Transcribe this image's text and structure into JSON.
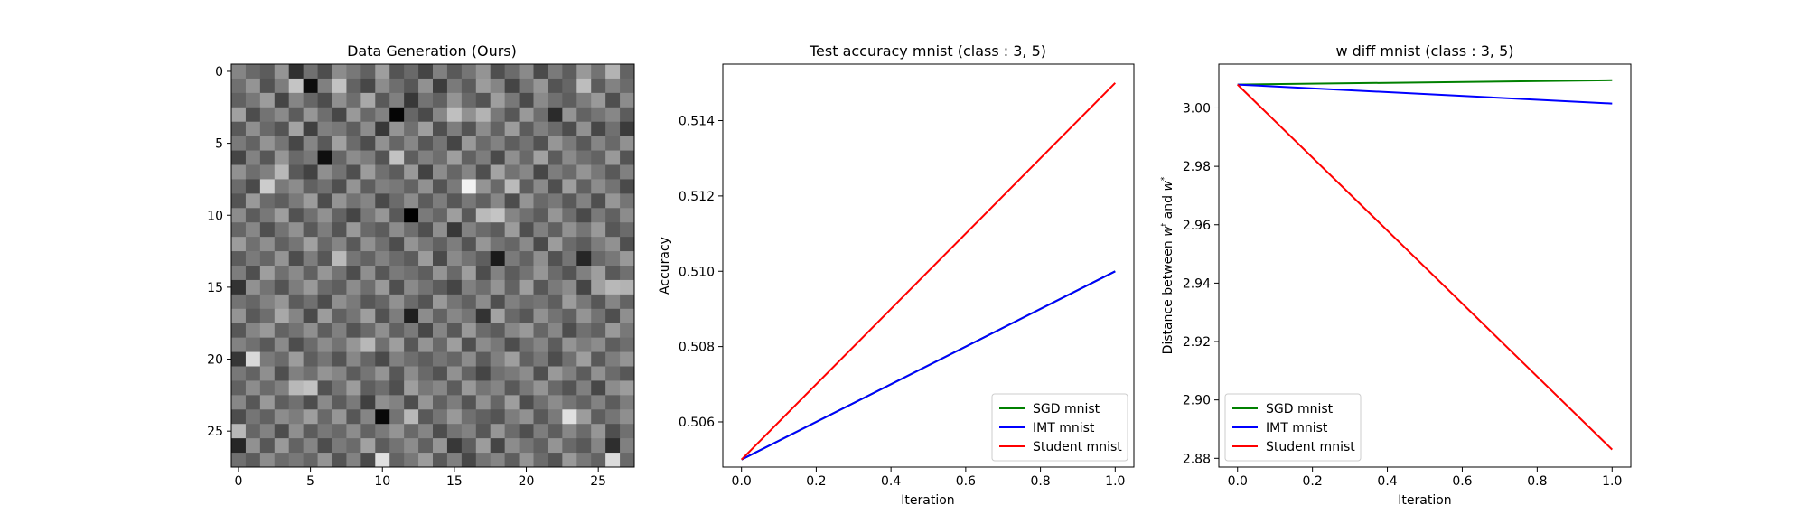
{
  "chart_data": [
    {
      "type": "heatmap",
      "title": "Data Generation (Ours)",
      "colormap": "gray",
      "rows": 28,
      "cols": 28,
      "xticks": [
        "0",
        "5",
        "10",
        "15",
        "20",
        "25"
      ],
      "yticks": [
        "0",
        "5",
        "10",
        "15",
        "20",
        "25"
      ],
      "cells": [
        [
          0.52,
          0.41,
          0.36,
          0.58,
          0.19,
          0.44,
          0.3,
          0.55,
          0.47,
          0.38,
          0.62,
          0.33,
          0.41,
          0.27,
          0.5,
          0.35,
          0.46,
          0.58,
          0.31,
          0.42,
          0.54,
          0.29,
          0.48,
          0.37,
          0.6,
          0.45,
          0.7,
          0.39
        ],
        [
          0.44,
          0.58,
          0.32,
          0.49,
          0.77,
          0.05,
          0.5,
          0.76,
          0.39,
          0.28,
          0.55,
          0.43,
          0.34,
          0.57,
          0.24,
          0.48,
          0.36,
          0.61,
          0.52,
          0.27,
          0.46,
          0.59,
          0.33,
          0.4,
          0.74,
          0.36,
          0.51,
          0.42
        ],
        [
          0.38,
          0.47,
          0.61,
          0.27,
          0.52,
          0.4,
          0.3,
          0.56,
          0.43,
          0.66,
          0.35,
          0.5,
          0.22,
          0.45,
          0.38,
          0.58,
          0.41,
          0.33,
          0.62,
          0.47,
          0.29,
          0.54,
          0.44,
          0.37,
          0.49,
          0.6,
          0.31,
          0.55
        ],
        [
          0.63,
          0.3,
          0.45,
          0.54,
          0.36,
          0.59,
          0.43,
          0.28,
          0.6,
          0.41,
          0.51,
          0.02,
          0.4,
          0.29,
          0.53,
          0.75,
          0.57,
          0.7,
          0.47,
          0.34,
          0.6,
          0.43,
          0.17,
          0.58,
          0.39,
          0.46,
          0.53,
          0.36
        ],
        [
          0.35,
          0.56,
          0.41,
          0.33,
          0.64,
          0.25,
          0.5,
          0.47,
          0.37,
          0.55,
          0.22,
          0.58,
          0.44,
          0.62,
          0.31,
          0.49,
          0.33,
          0.55,
          0.39,
          0.61,
          0.36,
          0.5,
          0.42,
          0.3,
          0.57,
          0.28,
          0.44,
          0.23
        ],
        [
          0.48,
          0.39,
          0.58,
          0.46,
          0.28,
          0.52,
          0.35,
          0.63,
          0.42,
          0.3,
          0.57,
          0.4,
          0.53,
          0.34,
          0.46,
          0.27,
          0.6,
          0.42,
          0.51,
          0.37,
          0.45,
          0.32,
          0.59,
          0.48,
          0.35,
          0.52,
          0.41,
          0.57
        ],
        [
          0.27,
          0.51,
          0.34,
          0.59,
          0.41,
          0.47,
          0.06,
          0.4,
          0.55,
          0.49,
          0.33,
          0.76,
          0.37,
          0.5,
          0.43,
          0.62,
          0.38,
          0.49,
          0.29,
          0.56,
          0.41,
          0.63,
          0.36,
          0.54,
          0.44,
          0.39,
          0.6,
          0.33
        ],
        [
          0.57,
          0.43,
          0.5,
          0.72,
          0.35,
          0.26,
          0.56,
          0.45,
          0.31,
          0.61,
          0.44,
          0.36,
          0.6,
          0.26,
          0.55,
          0.4,
          0.52,
          0.31,
          0.64,
          0.45,
          0.53,
          0.28,
          0.49,
          0.42,
          0.58,
          0.47,
          0.35,
          0.5
        ],
        [
          0.42,
          0.29,
          0.8,
          0.48,
          0.55,
          0.38,
          0.44,
          0.31,
          0.58,
          0.37,
          0.5,
          0.47,
          0.39,
          0.57,
          0.33,
          0.48,
          0.95,
          0.58,
          0.41,
          0.73,
          0.37,
          0.54,
          0.31,
          0.62,
          0.38,
          0.55,
          0.45,
          0.29
        ],
        [
          0.33,
          0.6,
          0.42,
          0.37,
          0.48,
          0.61,
          0.3,
          0.58,
          0.45,
          0.52,
          0.29,
          0.42,
          0.55,
          0.36,
          0.49,
          0.34,
          0.47,
          0.38,
          0.53,
          0.3,
          0.58,
          0.41,
          0.47,
          0.35,
          0.51,
          0.31,
          0.59,
          0.46
        ],
        [
          0.55,
          0.36,
          0.47,
          0.62,
          0.32,
          0.44,
          0.57,
          0.39,
          0.27,
          0.47,
          0.59,
          0.35,
          0.0,
          0.48,
          0.4,
          0.62,
          0.35,
          0.73,
          0.77,
          0.52,
          0.44,
          0.36,
          0.59,
          0.43,
          0.29,
          0.48,
          0.38,
          0.55
        ],
        [
          0.4,
          0.53,
          0.31,
          0.45,
          0.57,
          0.35,
          0.49,
          0.33,
          0.6,
          0.41,
          0.36,
          0.55,
          0.43,
          0.31,
          0.56,
          0.22,
          0.51,
          0.42,
          0.36,
          0.61,
          0.31,
          0.5,
          0.38,
          0.57,
          0.46,
          0.6,
          0.34,
          0.42
        ],
        [
          0.61,
          0.44,
          0.56,
          0.38,
          0.46,
          0.63,
          0.41,
          0.52,
          0.35,
          0.57,
          0.44,
          0.3,
          0.58,
          0.47,
          0.38,
          0.49,
          0.33,
          0.59,
          0.45,
          0.4,
          0.54,
          0.29,
          0.61,
          0.42,
          0.36,
          0.49,
          0.57,
          0.31
        ],
        [
          0.36,
          0.48,
          0.4,
          0.58,
          0.3,
          0.49,
          0.34,
          0.73,
          0.46,
          0.39,
          0.51,
          0.42,
          0.36,
          0.61,
          0.29,
          0.54,
          0.45,
          0.37,
          0.1,
          0.48,
          0.39,
          0.56,
          0.32,
          0.46,
          0.15,
          0.41,
          0.47,
          0.6
        ],
        [
          0.49,
          0.31,
          0.62,
          0.44,
          0.54,
          0.38,
          0.59,
          0.45,
          0.3,
          0.56,
          0.34,
          0.48,
          0.44,
          0.37,
          0.58,
          0.41,
          0.62,
          0.3,
          0.51,
          0.36,
          0.45,
          0.59,
          0.42,
          0.33,
          0.5,
          0.62,
          0.35,
          0.44
        ],
        [
          0.2,
          0.57,
          0.45,
          0.33,
          0.49,
          0.6,
          0.42,
          0.37,
          0.55,
          0.43,
          0.6,
          0.31,
          0.54,
          0.45,
          0.36,
          0.27,
          0.5,
          0.43,
          0.58,
          0.39,
          0.62,
          0.34,
          0.48,
          0.55,
          0.27,
          0.63,
          0.72,
          0.7
        ],
        [
          0.45,
          0.4,
          0.51,
          0.59,
          0.36,
          0.44,
          0.3,
          0.56,
          0.48,
          0.34,
          0.4,
          0.57,
          0.42,
          0.33,
          0.6,
          0.46,
          0.38,
          0.55,
          0.31,
          0.5,
          0.43,
          0.46,
          0.37,
          0.61,
          0.47,
          0.34,
          0.52,
          0.39
        ],
        [
          0.58,
          0.35,
          0.43,
          0.66,
          0.52,
          0.29,
          0.61,
          0.38,
          0.46,
          0.62,
          0.32,
          0.49,
          0.12,
          0.55,
          0.39,
          0.53,
          0.46,
          0.2,
          0.64,
          0.41,
          0.34,
          0.57,
          0.45,
          0.38,
          0.58,
          0.45,
          0.31,
          0.56
        ],
        [
          0.34,
          0.52,
          0.6,
          0.39,
          0.45,
          0.56,
          0.37,
          0.5,
          0.33,
          0.42,
          0.56,
          0.38,
          0.48,
          0.28,
          0.52,
          0.35,
          0.6,
          0.42,
          0.36,
          0.53,
          0.6,
          0.4,
          0.53,
          0.3,
          0.44,
          0.38,
          0.6,
          0.47
        ],
        [
          0.51,
          0.44,
          0.35,
          0.54,
          0.3,
          0.42,
          0.55,
          0.45,
          0.59,
          0.72,
          0.44,
          0.62,
          0.34,
          0.58,
          0.41,
          0.62,
          0.31,
          0.55,
          0.47,
          0.3,
          0.44,
          0.52,
          0.36,
          0.58,
          0.49,
          0.55,
          0.37,
          0.43
        ],
        [
          0.21,
          0.85,
          0.48,
          0.42,
          0.61,
          0.37,
          0.46,
          0.33,
          0.53,
          0.4,
          0.29,
          0.5,
          0.43,
          0.37,
          0.46,
          0.4,
          0.55,
          0.36,
          0.5,
          0.62,
          0.38,
          0.47,
          0.3,
          0.44,
          0.62,
          0.35,
          0.49,
          0.58
        ],
        [
          0.47,
          0.39,
          0.56,
          0.31,
          0.5,
          0.44,
          0.58,
          0.52,
          0.36,
          0.46,
          0.58,
          0.34,
          0.55,
          0.41,
          0.32,
          0.57,
          0.39,
          0.27,
          0.44,
          0.48,
          0.55,
          0.31,
          0.6,
          0.5,
          0.36,
          0.57,
          0.42,
          0.34
        ],
        [
          0.38,
          0.55,
          0.42,
          0.5,
          0.72,
          0.76,
          0.32,
          0.45,
          0.61,
          0.37,
          0.43,
          0.31,
          0.62,
          0.47,
          0.53,
          0.36,
          0.6,
          0.46,
          0.52,
          0.35,
          0.47,
          0.58,
          0.41,
          0.33,
          0.5,
          0.28,
          0.55,
          0.61
        ],
        [
          0.53,
          0.34,
          0.6,
          0.37,
          0.44,
          0.3,
          0.54,
          0.36,
          0.48,
          0.25,
          0.56,
          0.51,
          0.3,
          0.59,
          0.38,
          0.49,
          0.33,
          0.57,
          0.4,
          0.62,
          0.3,
          0.44,
          0.55,
          0.46,
          0.39,
          0.51,
          0.36,
          0.49
        ],
        [
          0.3,
          0.46,
          0.38,
          0.55,
          0.49,
          0.62,
          0.41,
          0.59,
          0.34,
          0.52,
          0.03,
          0.45,
          0.72,
          0.35,
          0.46,
          0.6,
          0.44,
          0.38,
          0.33,
          0.49,
          0.57,
          0.35,
          0.48,
          0.88,
          0.61,
          0.37,
          0.46,
          0.56
        ],
        [
          0.72,
          0.4,
          0.51,
          0.3,
          0.56,
          0.36,
          0.47,
          0.41,
          0.55,
          0.39,
          0.48,
          0.58,
          0.41,
          0.52,
          0.3,
          0.45,
          0.51,
          0.34,
          0.59,
          0.42,
          0.31,
          0.49,
          0.37,
          0.53,
          0.42,
          0.59,
          0.31,
          0.44
        ],
        [
          0.15,
          0.57,
          0.34,
          0.6,
          0.39,
          0.52,
          0.3,
          0.48,
          0.42,
          0.63,
          0.36,
          0.45,
          0.55,
          0.38,
          0.59,
          0.22,
          0.37,
          0.61,
          0.27,
          0.55,
          0.46,
          0.38,
          0.58,
          0.41,
          0.35,
          0.52,
          0.18,
          0.5
        ],
        [
          0.44,
          0.36,
          0.55,
          0.42,
          0.47,
          0.4,
          0.58,
          0.33,
          0.51,
          0.29,
          0.88,
          0.39,
          0.47,
          0.61,
          0.35,
          0.5,
          0.28,
          0.45,
          0.52,
          0.37,
          0.58,
          0.42,
          0.33,
          0.6,
          0.47,
          0.39,
          0.86,
          0.41
        ]
      ]
    },
    {
      "type": "line",
      "title": "Test accuracy mnist (class : 3, 5)",
      "xlabel": "Iteration",
      "ylabel": "Accuracy",
      "xlim": [
        -0.05,
        1.05
      ],
      "ylim": [
        0.5048,
        0.5155
      ],
      "xticks": [
        "0.0",
        "0.2",
        "0.4",
        "0.6",
        "0.8",
        "1.0"
      ],
      "yticks": [
        "0.506",
        "0.508",
        "0.510",
        "0.512",
        "0.514"
      ],
      "legend_position": "lower-right",
      "series": [
        {
          "name": "SGD mnist",
          "color": "#008000",
          "x": [
            0,
            1
          ],
          "y": [
            0.505,
            0.51
          ]
        },
        {
          "name": "IMT mnist",
          "color": "#0000ff",
          "x": [
            0,
            1
          ],
          "y": [
            0.505,
            0.51
          ]
        },
        {
          "name": "Student mnist",
          "color": "#ff0000",
          "x": [
            0,
            1
          ],
          "y": [
            0.505,
            0.515
          ]
        }
      ]
    },
    {
      "type": "line",
      "title": "w diff mnist (class : 3, 5)",
      "xlabel": "Iteration",
      "ylabel": "Distance between w^t and w^*",
      "xlim": [
        -0.05,
        1.05
      ],
      "ylim": [
        2.877,
        3.015
      ],
      "xticks": [
        "0.0",
        "0.2",
        "0.4",
        "0.6",
        "0.8",
        "1.0"
      ],
      "yticks": [
        "2.88",
        "2.90",
        "2.92",
        "2.94",
        "2.96",
        "2.98",
        "3.00"
      ],
      "legend_position": "lower-left",
      "series": [
        {
          "name": "SGD mnist",
          "color": "#008000",
          "x": [
            0,
            1
          ],
          "y": [
            3.008,
            3.0095
          ]
        },
        {
          "name": "IMT mnist",
          "color": "#0000ff",
          "x": [
            0,
            1
          ],
          "y": [
            3.008,
            3.0015
          ]
        },
        {
          "name": "Student mnist",
          "color": "#ff0000",
          "x": [
            0,
            1
          ],
          "y": [
            3.008,
            2.883
          ]
        }
      ]
    }
  ]
}
